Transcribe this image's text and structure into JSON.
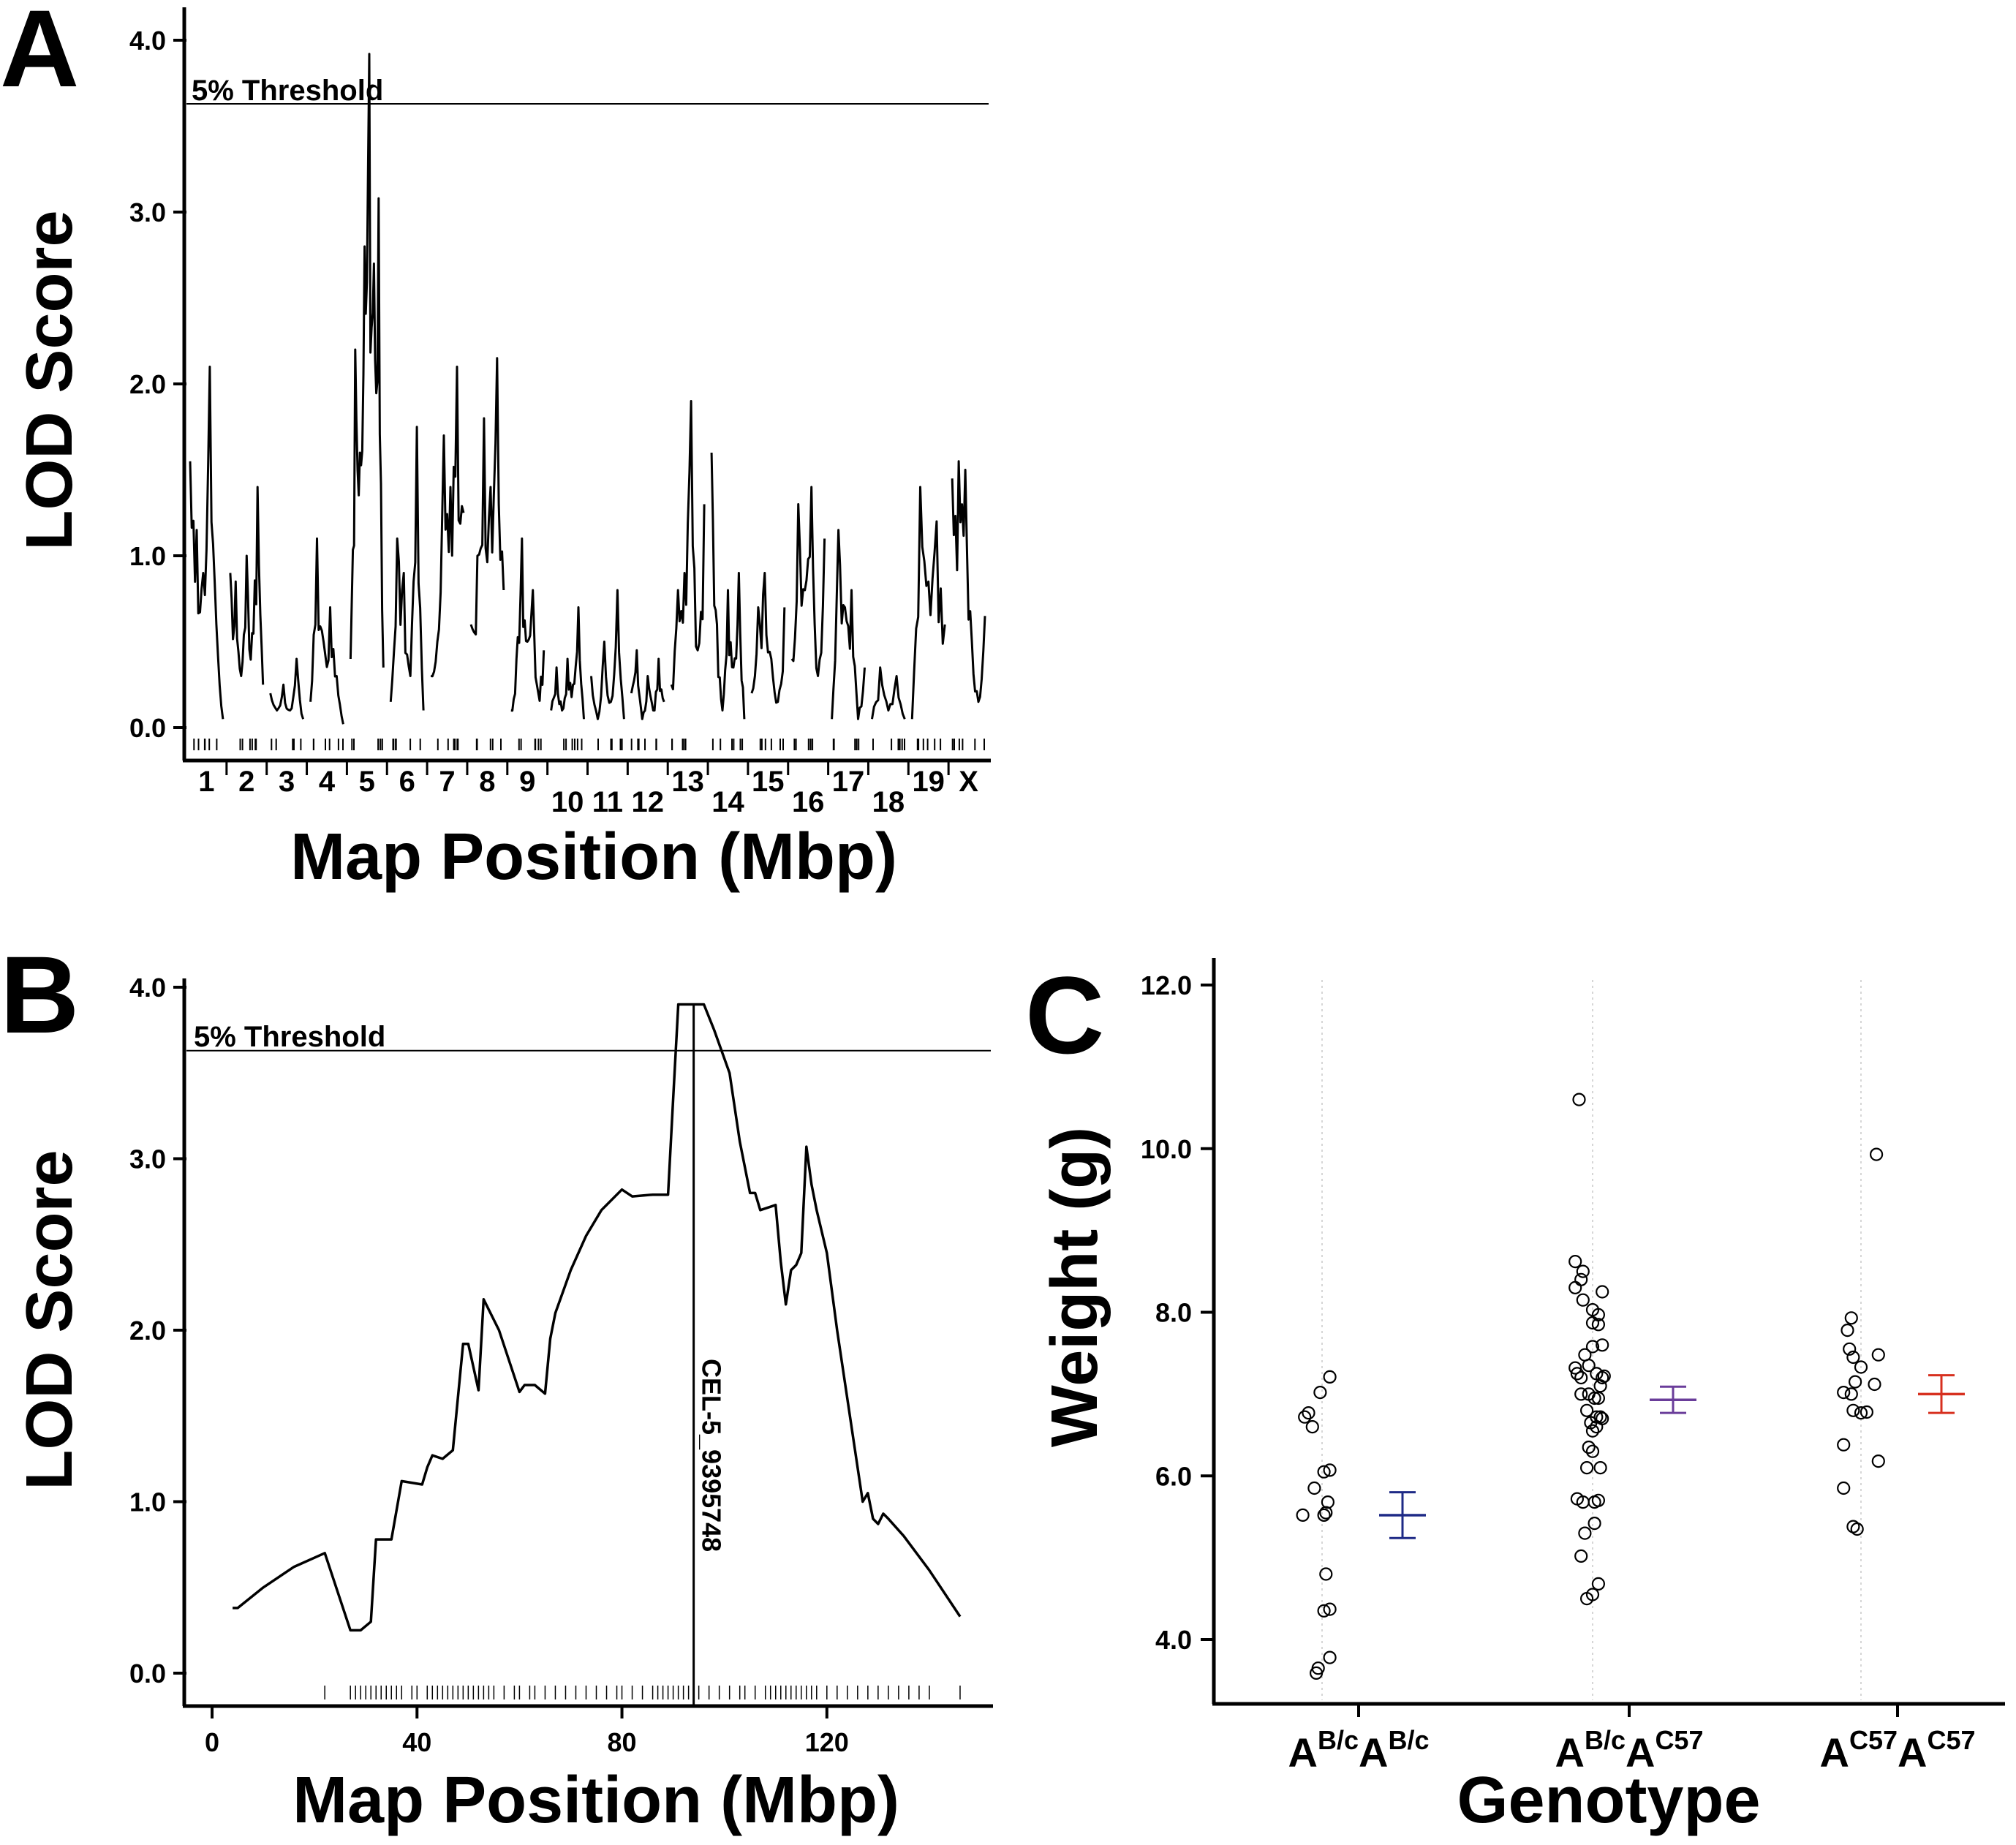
{
  "figure": {
    "panel_labels": [
      "A",
      "B",
      "C"
    ]
  },
  "chart_data": [
    {
      "panel": "A",
      "type": "line",
      "xlabel": "Map Position (Mbp)",
      "ylabel": "LOD Score",
      "ylim": [
        0,
        4.2
      ],
      "yticks": [
        0,
        1,
        2,
        3,
        4
      ],
      "ytick_labels": [
        "0.0",
        "1.0",
        "2.0",
        "3.0",
        "4.0"
      ],
      "threshold": {
        "label": "5% Threshold",
        "value": 3.63
      },
      "chromosomes": [
        {
          "label": "1",
          "peaks": [
            1.55,
            1.15,
            0.9,
            2.1,
            0.6,
            0.05
          ]
        },
        {
          "label": "2",
          "peaks": [
            0.9,
            0.85,
            0.3,
            1.0,
            0.55,
            1.4,
            0.25
          ]
        },
        {
          "label": "3",
          "peaks": [
            0.2,
            0.1,
            0.25,
            0.1,
            0.4,
            0.05
          ]
        },
        {
          "label": "4",
          "peaks": [
            0.15,
            1.1,
            0.5,
            0.7,
            0.3,
            0.02
          ]
        },
        {
          "label": "5",
          "peaks": [
            0.4,
            2.2,
            1.6,
            2.8,
            3.92,
            2.7,
            3.08,
            0.35
          ]
        },
        {
          "label": "6",
          "peaks": [
            0.15,
            1.1,
            0.9,
            0.3,
            1.75,
            0.1
          ]
        },
        {
          "label": "7",
          "peaks": [
            0.3,
            0.5,
            1.7,
            1.4,
            2.1,
            1.25
          ]
        },
        {
          "label": "8",
          "peaks": [
            0.6,
            1.0,
            1.8,
            1.4,
            2.15,
            0.8
          ]
        },
        {
          "label": "9",
          "peaks": [
            0.1,
            0.4,
            1.1,
            0.5,
            0.8,
            0.2,
            0.45
          ]
        },
        {
          "label": "10",
          "peaks": [
            0.1,
            0.35,
            0.1,
            0.4,
            0.25,
            0.7,
            0.05
          ]
        },
        {
          "label": "11",
          "peaks": [
            0.3,
            0.05,
            0.5,
            0.15,
            0.8,
            0.05
          ]
        },
        {
          "label": "12",
          "peaks": [
            0.2,
            0.45,
            0.05,
            0.3,
            0.1,
            0.4,
            0.15
          ]
        },
        {
          "label": "13",
          "peaks": [
            0.25,
            0.8,
            0.9,
            1.9,
            0.45,
            1.3
          ]
        },
        {
          "label": "14",
          "peaks": [
            1.6,
            0.6,
            0.1,
            0.8,
            0.35,
            0.9,
            0.05
          ]
        },
        {
          "label": "15",
          "peaks": [
            0.2,
            0.7,
            0.9,
            0.4,
            0.15,
            0.7
          ]
        },
        {
          "label": "16",
          "peaks": [
            0.4,
            1.3,
            0.8,
            1.4,
            0.3,
            1.1
          ]
        },
        {
          "label": "17",
          "peaks": [
            0.05,
            1.15,
            0.7,
            0.8,
            0.05,
            0.35
          ]
        },
        {
          "label": "18",
          "peaks": [
            0.05,
            0.35,
            0.1,
            0.3,
            0.05
          ]
        },
        {
          "label": "19",
          "peaks": [
            0.05,
            1.4,
            0.85,
            1.2,
            0.6
          ]
        },
        {
          "label": "X",
          "peaks": [
            1.45,
            1.55,
            1.5,
            0.5,
            0.15,
            0.65
          ]
        }
      ]
    },
    {
      "panel": "B",
      "type": "line",
      "xlabel": "Map Position (Mbp)",
      "ylabel": "LOD Score",
      "xlim": [
        -5,
        152
      ],
      "ylim": [
        0,
        4.0
      ],
      "xticks": [
        0,
        40,
        80,
        120
      ],
      "xtick_labels": [
        "0",
        "40",
        "80",
        "120"
      ],
      "yticks": [
        0,
        1,
        2,
        3,
        4
      ],
      "ytick_labels": [
        "0.0",
        "1.0",
        "2.0",
        "3.0",
        "4.0"
      ],
      "threshold": {
        "label": "5% Threshold",
        "value": 3.63
      },
      "marker": {
        "label": "CEL-5_9395748",
        "x": 94.0
      },
      "x": [
        4,
        5,
        10,
        16,
        22,
        27,
        29,
        31,
        32,
        35,
        37,
        41,
        42,
        43,
        45,
        47,
        49,
        50,
        52,
        53,
        56,
        58,
        60,
        61,
        62,
        63,
        65,
        66,
        67,
        70,
        73,
        76,
        80,
        82,
        86,
        88,
        89,
        90,
        91,
        93,
        94,
        96,
        98,
        101,
        103,
        105,
        106,
        107,
        109,
        110,
        111,
        112,
        113,
        114,
        115,
        116,
        117,
        118,
        120,
        122,
        125,
        127,
        128,
        129,
        130,
        131,
        132,
        135,
        140,
        146
      ],
      "y": [
        0.38,
        0.38,
        0.5,
        0.62,
        0.7,
        0.25,
        0.25,
        0.3,
        0.78,
        0.78,
        1.12,
        1.1,
        1.2,
        1.27,
        1.25,
        1.3,
        1.92,
        1.92,
        1.65,
        2.18,
        2.0,
        1.82,
        1.64,
        1.68,
        1.68,
        1.68,
        1.63,
        1.95,
        2.1,
        2.35,
        2.55,
        2.7,
        2.82,
        2.78,
        2.79,
        2.79,
        2.79,
        3.35,
        3.9,
        3.9,
        3.9,
        3.9,
        3.75,
        3.5,
        3.1,
        2.8,
        2.8,
        2.7,
        2.72,
        2.73,
        2.4,
        2.15,
        2.35,
        2.38,
        2.45,
        3.07,
        2.85,
        2.7,
        2.45,
        2.0,
        1.4,
        1.0,
        1.05,
        0.9,
        0.87,
        0.93,
        0.9,
        0.8,
        0.6,
        0.33
      ],
      "marker_ticks": [
        22,
        27,
        28,
        29,
        30,
        31,
        32,
        33,
        34,
        35,
        36,
        37,
        39,
        40,
        42,
        43,
        44,
        45,
        46,
        47,
        48,
        49,
        50,
        51,
        52,
        53,
        54,
        55,
        57,
        59,
        60,
        62,
        63,
        65,
        67,
        69,
        71,
        73,
        75,
        77,
        79,
        80,
        82,
        84,
        86,
        87,
        88,
        89,
        90,
        91,
        92,
        93,
        94,
        95,
        97,
        99,
        101,
        103,
        104,
        106,
        108,
        109,
        110,
        111,
        112,
        113,
        114,
        115,
        116,
        117,
        118,
        120,
        122,
        124,
        126,
        128,
        130,
        132,
        134,
        136,
        138,
        140,
        146
      ]
    },
    {
      "panel": "C",
      "type": "scatter",
      "xlabel": "Genotype",
      "ylabel": "Weight (g)",
      "ylim": [
        3.4,
        12.4
      ],
      "yticks": [
        4,
        6,
        8,
        10,
        12
      ],
      "ytick_labels": [
        "4.0",
        "6.0",
        "8.0",
        "10.0",
        "12.0"
      ],
      "categories": [
        {
          "base1": "A",
          "sup1": "B/c",
          "base2": "A",
          "sup2": "B/c"
        },
        {
          "base1": "A",
          "sup1": "B/c",
          "base2": "A",
          "sup2": "C57"
        },
        {
          "base1": "A",
          "sup1": "C57",
          "base2": "A",
          "sup2": "C57"
        }
      ],
      "series": [
        {
          "name": "AB/cAB/c",
          "color": "#1e2a86",
          "mean": 5.52,
          "sem_low": 5.24,
          "sem_high": 5.8,
          "points": [
            [
              -0.09,
              6.72
            ],
            [
              -0.07,
              6.77
            ],
            [
              -0.05,
              6.6
            ],
            [
              -0.01,
              7.02
            ],
            [
              0.04,
              7.21
            ],
            [
              -0.1,
              5.52
            ],
            [
              -0.04,
              5.85
            ],
            [
              0.01,
              6.05
            ],
            [
              0.04,
              6.07
            ],
            [
              0.02,
              5.55
            ],
            [
              0.03,
              5.68
            ],
            [
              0.01,
              5.52
            ],
            [
              0.02,
              4.8
            ],
            [
              0.01,
              4.35
            ],
            [
              0.04,
              4.37
            ],
            [
              -0.02,
              3.65
            ],
            [
              -0.03,
              3.59
            ],
            [
              0.04,
              3.78
            ]
          ]
        },
        {
          "name": "AB/cAC57",
          "color": "#6a3d9a",
          "mean": 6.93,
          "sem_low": 6.77,
          "sem_high": 7.09,
          "points": [
            [
              -0.07,
              10.6
            ],
            [
              -0.09,
              8.62
            ],
            [
              -0.05,
              8.5
            ],
            [
              -0.06,
              8.4
            ],
            [
              -0.09,
              8.3
            ],
            [
              0.05,
              8.25
            ],
            [
              -0.05,
              8.15
            ],
            [
              0.0,
              8.03
            ],
            [
              0.03,
              7.97
            ],
            [
              0.0,
              7.87
            ],
            [
              0.03,
              7.85
            ],
            [
              0.05,
              7.6
            ],
            [
              0.0,
              7.58
            ],
            [
              -0.04,
              7.48
            ],
            [
              -0.02,
              7.35
            ],
            [
              -0.09,
              7.32
            ],
            [
              -0.08,
              7.25
            ],
            [
              0.02,
              7.25
            ],
            [
              0.05,
              7.2
            ],
            [
              0.06,
              7.22
            ],
            [
              -0.06,
              7.2
            ],
            [
              0.04,
              7.1
            ],
            [
              -0.06,
              7.0
            ],
            [
              -0.02,
              7.0
            ],
            [
              0.01,
              6.95
            ],
            [
              0.03,
              6.95
            ],
            [
              -0.03,
              6.8
            ],
            [
              0.02,
              6.72
            ],
            [
              0.04,
              6.72
            ],
            [
              0.05,
              6.7
            ],
            [
              -0.01,
              6.65
            ],
            [
              0.02,
              6.6
            ],
            [
              0.0,
              6.55
            ],
            [
              -0.02,
              6.35
            ],
            [
              0.0,
              6.3
            ],
            [
              0.04,
              6.1
            ],
            [
              -0.03,
              6.1
            ],
            [
              -0.08,
              5.72
            ],
            [
              -0.05,
              5.68
            ],
            [
              0.01,
              5.68
            ],
            [
              0.03,
              5.7
            ],
            [
              -0.04,
              5.3
            ],
            [
              0.01,
              5.42
            ],
            [
              -0.06,
              5.02
            ],
            [
              -0.03,
              4.5
            ],
            [
              0.0,
              4.55
            ],
            [
              0.03,
              4.68
            ]
          ]
        },
        {
          "name": "AC57AC57",
          "color": "#d7301f",
          "mean": 7.0,
          "sem_low": 6.77,
          "sem_high": 7.23,
          "points": [
            [
              0.08,
              9.93
            ],
            [
              -0.05,
              7.93
            ],
            [
              -0.07,
              7.78
            ],
            [
              -0.06,
              7.55
            ],
            [
              -0.04,
              7.45
            ],
            [
              0.09,
              7.48
            ],
            [
              -0.09,
              7.02
            ],
            [
              -0.03,
              7.15
            ],
            [
              0.0,
              7.33
            ],
            [
              0.07,
              7.12
            ],
            [
              -0.05,
              7.0
            ],
            [
              -0.04,
              6.8
            ],
            [
              0.03,
              6.78
            ],
            [
              0.0,
              6.77
            ],
            [
              -0.09,
              6.38
            ],
            [
              0.09,
              6.18
            ],
            [
              -0.09,
              5.85
            ],
            [
              -0.04,
              5.38
            ],
            [
              -0.02,
              5.35
            ]
          ]
        }
      ]
    }
  ]
}
